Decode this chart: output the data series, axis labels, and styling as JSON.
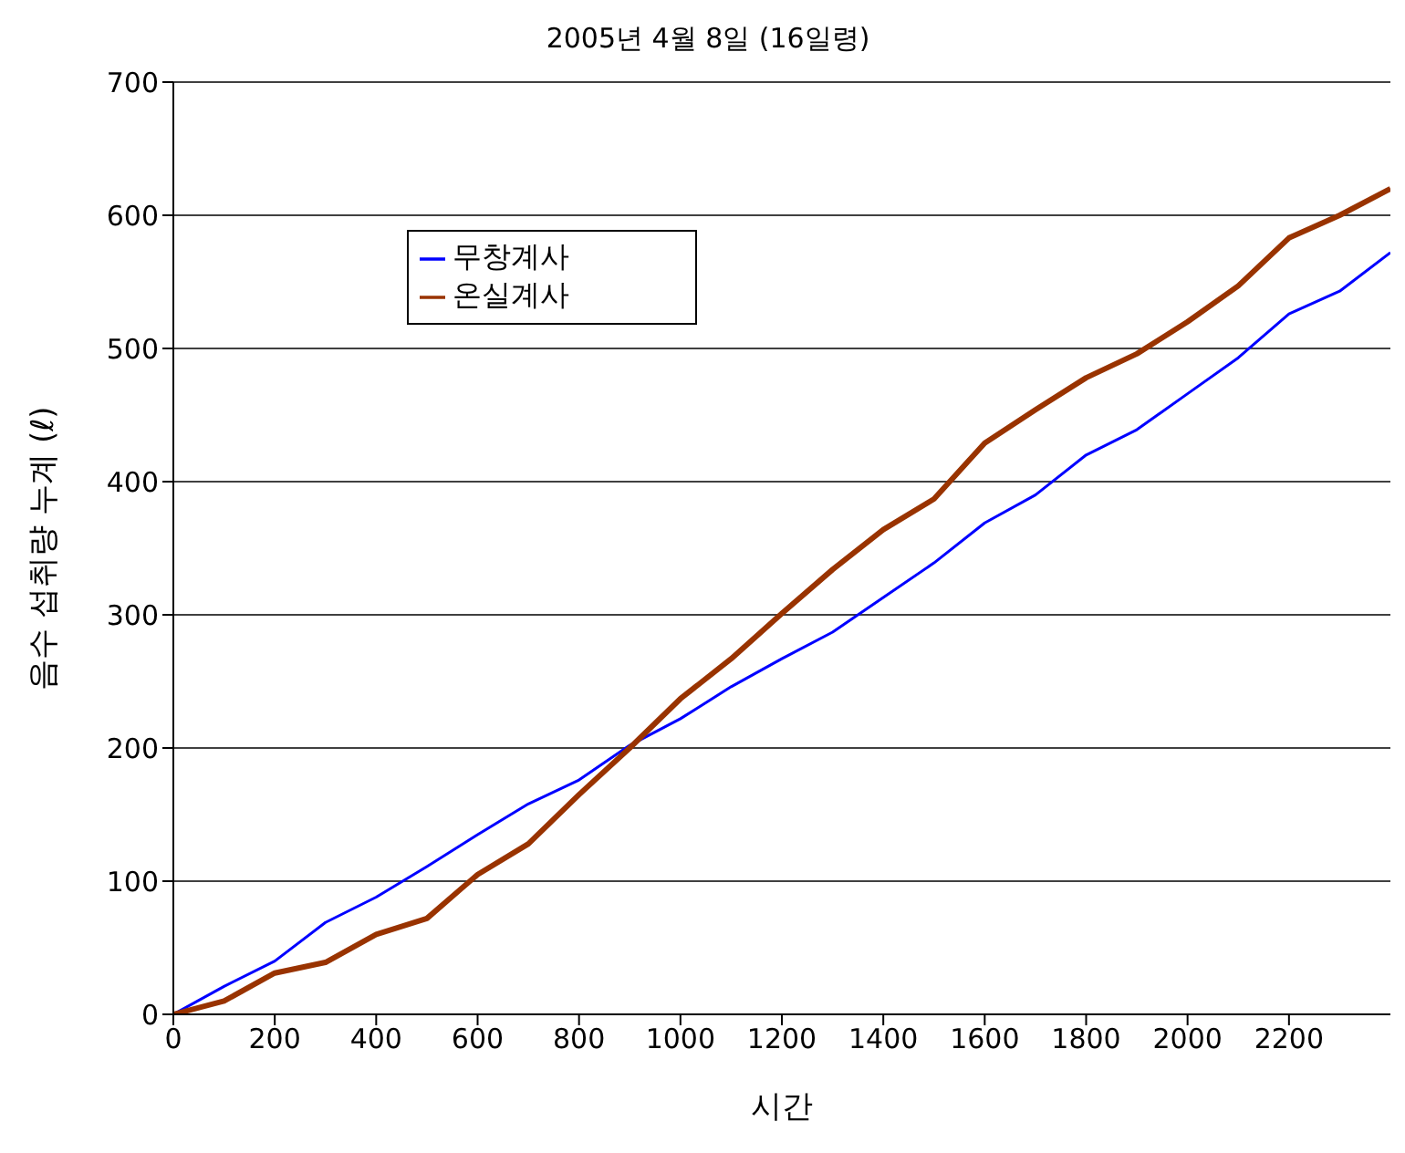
{
  "chart_data": {
    "type": "line",
    "title": "2005년 4월 8일 (16일령)",
    "xlabel": "시간",
    "ylabel": "음수 섭취량 누계 (ℓ)",
    "x": [
      0,
      100,
      200,
      300,
      400,
      500,
      600,
      700,
      800,
      900,
      1000,
      1100,
      1200,
      1300,
      1400,
      1500,
      1600,
      1700,
      1800,
      1900,
      2000,
      2100,
      2200,
      2300,
      2400
    ],
    "series": [
      {
        "name": "무창계사",
        "color": "#0000ff",
        "values": [
          0,
          21,
          40,
          69,
          88,
          111,
          135,
          158,
          176,
          202,
          222,
          246,
          267,
          287,
          313,
          339,
          369,
          390,
          420,
          439,
          466,
          493,
          526,
          543,
          572
        ]
      },
      {
        "name": "온실계사",
        "color": "#993300",
        "values": [
          0,
          10,
          31,
          39,
          60,
          72,
          105,
          128,
          165,
          200,
          237,
          267,
          301,
          334,
          364,
          387,
          429,
          454,
          478,
          496,
          520,
          547,
          583,
          600,
          620
        ]
      }
    ],
    "xlim": [
      0,
      2400
    ],
    "xticks": [
      0,
      200,
      400,
      600,
      800,
      1000,
      1200,
      1400,
      1600,
      1800,
      2000,
      2200
    ],
    "ylim": [
      0,
      700
    ],
    "yticks": [
      0,
      100,
      200,
      300,
      400,
      500,
      600,
      700
    ],
    "grid": "y",
    "legend": "top left",
    "marker": "none",
    "line_style": "solid"
  }
}
